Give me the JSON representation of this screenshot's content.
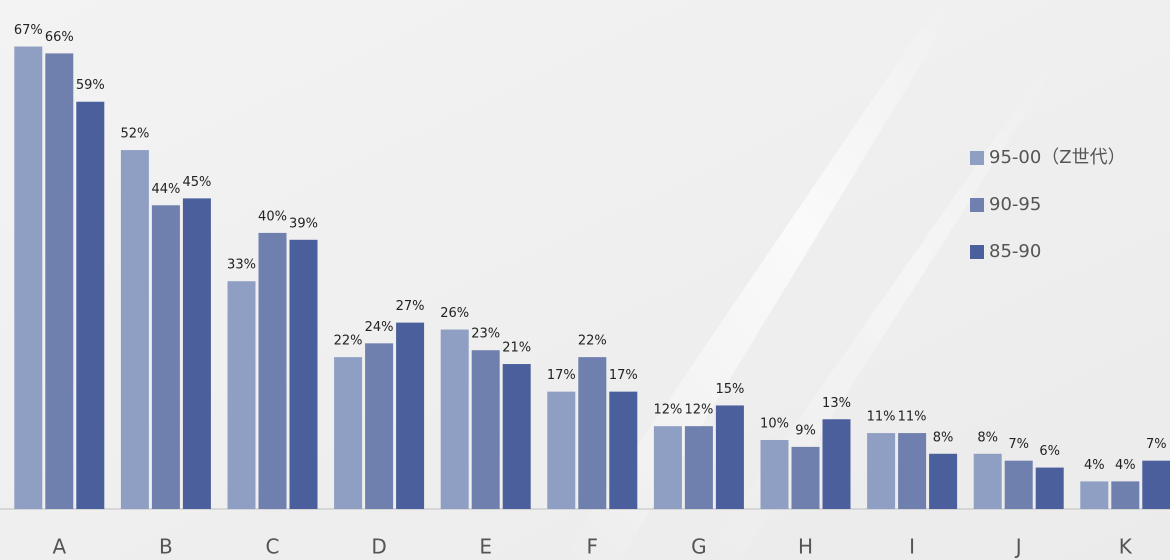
{
  "chart_data": {
    "type": "bar",
    "categories": [
      "A",
      "B",
      "C",
      "D",
      "E",
      "F",
      "G",
      "H",
      "I",
      "J",
      "K"
    ],
    "series": [
      {
        "name": "95-00（Z世代）",
        "color": "#8f9fc4",
        "values": [
          67,
          52,
          33,
          22,
          26,
          17,
          12,
          10,
          11,
          8,
          4
        ],
        "value_labels": [
          "67%",
          "52%",
          "33%",
          "22%",
          "26%",
          "17%",
          "12%",
          "10%",
          "11%",
          "8%",
          "4%"
        ]
      },
      {
        "name": "90-95",
        "color": "#6f7fae",
        "values": [
          66,
          44,
          40,
          24,
          23,
          22,
          12,
          9,
          11,
          7,
          4
        ],
        "value_labels": [
          "66%",
          "44%",
          "40%",
          "24%",
          "23%",
          "22%",
          "12%",
          "9%",
          "11%",
          "7%",
          "4%"
        ]
      },
      {
        "name": "85-90",
        "color": "#4a5f9b",
        "values": [
          59,
          45,
          39,
          27,
          21,
          17,
          15,
          13,
          8,
          6,
          7
        ],
        "value_labels": [
          "59%",
          "45%",
          "39%",
          "27%",
          "21%",
          "17%",
          "15%",
          "13%",
          "8%",
          "6%",
          "7%"
        ]
      }
    ],
    "ylim": [
      0,
      72
    ],
    "grid": false,
    "legend": "right"
  }
}
